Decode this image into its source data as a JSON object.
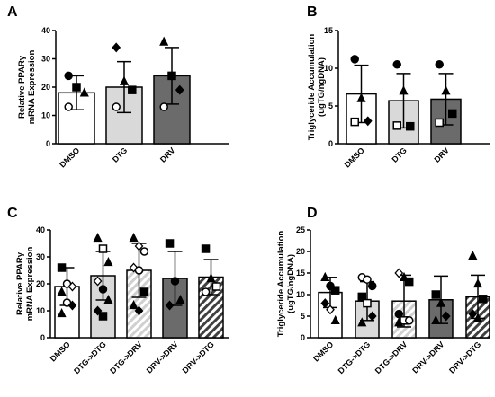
{
  "colors": {
    "black": "#000000",
    "white": "#ffffff",
    "light": "#d9d9d9",
    "dark": "#6b6b6b",
    "hatch_light": "#d0d0d0",
    "hatch_dark": "#404040"
  },
  "chart_data": [
    {
      "panel": "A",
      "type": "bar",
      "ylabel_lines": [
        "Relative PPARγ",
        "mRNA  Expression"
      ],
      "ylim": [
        0,
        40
      ],
      "yticks": [
        0,
        10,
        20,
        30,
        40
      ],
      "categories": [
        "DMSO",
        "DTG",
        "DRV"
      ],
      "values": [
        18,
        20,
        24
      ],
      "errors": [
        6,
        9,
        10
      ],
      "fills": [
        "white",
        "light",
        "dark"
      ],
      "points": [
        [
          {
            "y": 24,
            "m": "circle"
          },
          {
            "y": 20,
            "m": "square"
          },
          {
            "y": 18,
            "m": "triangle"
          },
          {
            "y": 13,
            "m": "open-circle"
          }
        ],
        [
          {
            "y": 34,
            "m": "diamond"
          },
          {
            "y": 22,
            "m": "triangle"
          },
          {
            "y": 19,
            "m": "square"
          },
          {
            "y": 13,
            "m": "open-circle"
          }
        ],
        [
          {
            "y": 36,
            "m": "triangle"
          },
          {
            "y": 24,
            "m": "square"
          },
          {
            "y": 19,
            "m": "diamond"
          },
          {
            "y": 13,
            "m": "open-circle"
          }
        ]
      ]
    },
    {
      "panel": "B",
      "type": "bar",
      "ylabel_lines": [
        "Triglyceride Accumulation",
        "(ugTG/ngDNA)"
      ],
      "ylim": [
        0,
        15
      ],
      "yticks": [
        0,
        5,
        10,
        15
      ],
      "categories": [
        "DMSO",
        "DTG",
        "DRV"
      ],
      "values": [
        6.6,
        5.7,
        5.9
      ],
      "errors": [
        3.8,
        3.6,
        3.4
      ],
      "fills": [
        "white",
        "light",
        "dark"
      ],
      "points": [
        [
          {
            "y": 11.2,
            "m": "circle"
          },
          {
            "y": 6.0,
            "m": "triangle"
          },
          {
            "y": 3.0,
            "m": "diamond"
          },
          {
            "y": 2.9,
            "m": "open-square"
          }
        ],
        [
          {
            "y": 10.5,
            "m": "circle"
          },
          {
            "y": 7.0,
            "m": "triangle"
          },
          {
            "y": 2.3,
            "m": "square"
          },
          {
            "y": 2.4,
            "m": "open-square"
          }
        ],
        [
          {
            "y": 10.5,
            "m": "circle"
          },
          {
            "y": 7.0,
            "m": "triangle"
          },
          {
            "y": 4.0,
            "m": "square"
          },
          {
            "y": 2.8,
            "m": "open-square"
          }
        ]
      ]
    },
    {
      "panel": "C",
      "type": "bar",
      "ylabel_lines": [
        "Relative PPARγ",
        "mRNA  Expression"
      ],
      "ylim": [
        0,
        40
      ],
      "yticks": [
        0,
        10,
        20,
        30,
        40
      ],
      "categories": [
        "DMSO",
        "DTG->DTG",
        "DTG->DRV",
        "DRV->DRV",
        "DRV->DTG"
      ],
      "values": [
        19,
        23,
        25,
        22,
        22.5
      ],
      "errors": [
        7,
        9,
        10,
        10,
        6.5
      ],
      "fills": [
        "white",
        "light",
        "hatch-light",
        "dark",
        "hatch-dark"
      ],
      "points": [
        [
          {
            "y": 26,
            "m": "square"
          },
          {
            "y": 20,
            "m": "open-circle"
          },
          {
            "y": 19,
            "m": "open-diamond"
          },
          {
            "y": 17,
            "m": "triangle"
          },
          {
            "y": 13,
            "m": "open-circle"
          },
          {
            "y": 12,
            "m": "diamond"
          },
          {
            "y": 9,
            "m": "triangle"
          }
        ],
        [
          {
            "y": 37,
            "m": "triangle"
          },
          {
            "y": 33,
            "m": "open-square"
          },
          {
            "y": 28,
            "m": "triangle"
          },
          {
            "y": 21,
            "m": "open-diamond"
          },
          {
            "y": 18,
            "m": "circle"
          },
          {
            "y": 14,
            "m": "triangle"
          },
          {
            "y": 10,
            "m": "diamond"
          },
          {
            "y": 8,
            "m": "square"
          }
        ],
        [
          {
            "y": 37,
            "m": "triangle"
          },
          {
            "y": 34,
            "m": "open-diamond"
          },
          {
            "y": 32,
            "m": "open-circle"
          },
          {
            "y": 26,
            "m": "open-diamond"
          },
          {
            "y": 25,
            "m": "open-circle"
          },
          {
            "y": 17,
            "m": "square"
          },
          {
            "y": 12,
            "m": "triangle"
          },
          {
            "y": 10,
            "m": "diamond"
          }
        ],
        [
          {
            "y": 35,
            "m": "square"
          },
          {
            "y": 21,
            "m": "circle"
          },
          {
            "y": 14,
            "m": "triangle"
          },
          {
            "y": 12,
            "m": "diamond"
          }
        ],
        [
          {
            "y": 33,
            "m": "square"
          },
          {
            "y": 22,
            "m": "triangle"
          },
          {
            "y": 19,
            "m": "open-square"
          },
          {
            "y": 17,
            "m": "open-circle"
          }
        ]
      ]
    },
    {
      "panel": "D",
      "type": "bar",
      "ylabel_lines": [
        "Triglyceride Accumulation",
        "(ugTG/ngDNA)"
      ],
      "ylim": [
        0,
        25
      ],
      "yticks": [
        0,
        5,
        10,
        15,
        20,
        25
      ],
      "categories": [
        "DMSO",
        "DTG->DTG",
        "DTG->DRV",
        "DRV->DRV",
        "DRV->DTG"
      ],
      "values": [
        10.5,
        8.5,
        8.5,
        8.8,
        9.5
      ],
      "errors": [
        3.5,
        4.5,
        6,
        5.5,
        5
      ],
      "fills": [
        "white",
        "light",
        "hatch-light",
        "dark",
        "hatch-dark"
      ],
      "points": [
        [
          {
            "y": 14,
            "m": "triangle"
          },
          {
            "y": 12,
            "m": "circle"
          },
          {
            "y": 11,
            "m": "square"
          },
          {
            "y": 8,
            "m": "diamond"
          },
          {
            "y": 6.5,
            "m": "open-diamond"
          },
          {
            "y": 4,
            "m": "triangle"
          }
        ],
        [
          {
            "y": 14,
            "m": "open-circle"
          },
          {
            "y": 13.5,
            "m": "open-circle"
          },
          {
            "y": 12,
            "m": "circle"
          },
          {
            "y": 9.5,
            "m": "square"
          },
          {
            "y": 8,
            "m": "open-square"
          },
          {
            "y": 5,
            "m": "diamond"
          },
          {
            "y": 3.5,
            "m": "triangle"
          }
        ],
        [
          {
            "y": 15,
            "m": "open-diamond"
          },
          {
            "y": 14,
            "m": "triangle"
          },
          {
            "y": 13,
            "m": "square"
          },
          {
            "y": 5.5,
            "m": "circle"
          },
          {
            "y": 4,
            "m": "open-square"
          },
          {
            "y": 4,
            "m": "open-circle"
          },
          {
            "y": 3.5,
            "m": "triangle"
          }
        ],
        [
          {
            "y": 10,
            "m": "square"
          },
          {
            "y": 8,
            "m": "triangle"
          },
          {
            "y": 5,
            "m": "diamond"
          },
          {
            "y": 4,
            "m": "triangle"
          }
        ],
        [
          {
            "y": 19,
            "m": "triangle"
          },
          {
            "y": 12.5,
            "m": "triangle"
          },
          {
            "y": 9,
            "m": "square"
          },
          {
            "y": 5.5,
            "m": "diamond"
          },
          {
            "y": 4.5,
            "m": "triangle"
          }
        ]
      ]
    }
  ]
}
